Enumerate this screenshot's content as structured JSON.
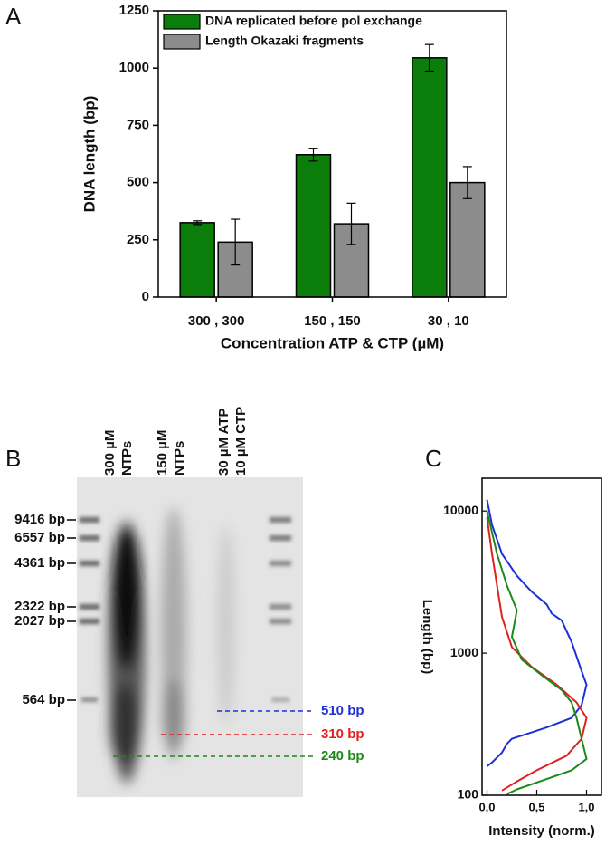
{
  "panel_labels": [
    "A",
    "B",
    "C"
  ],
  "chart_data": [
    {
      "type": "bar",
      "ylabel": "DNA length (bp)",
      "xlabel": "Concentration ATP & CTP (µM)",
      "categories": [
        "300 , 300",
        "150 , 150",
        "30 , 10"
      ],
      "series": [
        {
          "name": "DNA replicated before pol exchange",
          "color": "#0a7d0a",
          "values": [
            325,
            622,
            1045
          ],
          "errors": [
            8,
            28,
            58
          ]
        },
        {
          "name": "Length Okazaki fragments",
          "color": "#8c8c8c",
          "values": [
            240,
            320,
            500
          ],
          "errors": [
            100,
            90,
            70
          ]
        }
      ],
      "ylim": [
        0,
        1250
      ],
      "yticks": [
        0,
        250,
        500,
        750,
        1000,
        1250
      ],
      "legend": "upper left"
    },
    {
      "type": "line",
      "ylabel": "Length (bp)",
      "xlabel": "Intensity (norm.)",
      "log_y": true,
      "xlim": [
        -0.05,
        1.15
      ],
      "xticks": [
        {
          "value": 0,
          "label": "0,0"
        },
        {
          "value": 0.5,
          "label": "0,5"
        },
        {
          "value": 1,
          "label": "1,0"
        }
      ],
      "ylim": [
        100,
        17000
      ],
      "yticks": [
        100,
        1000,
        10000
      ],
      "series": [
        {
          "color": "#1f2fd8",
          "x": [
            0.0,
            0.05,
            0.15,
            0.3,
            0.45,
            0.6,
            0.65,
            0.75,
            0.85,
            0.95,
            1.0,
            0.95,
            0.85,
            0.6,
            0.4,
            0.25,
            0.2,
            0.15,
            0.05,
            0.0
          ],
          "values": [
            12000,
            8000,
            5000,
            3500,
            2700,
            2200,
            1900,
            1700,
            1200,
            750,
            600,
            430,
            350,
            300,
            270,
            250,
            230,
            200,
            170,
            160
          ]
        },
        {
          "color": "#e0201c",
          "x": [
            0.0,
            0.05,
            0.1,
            0.15,
            0.25,
            0.45,
            0.7,
            0.9,
            1.0,
            0.95,
            0.8,
            0.5,
            0.3,
            0.15
          ],
          "values": [
            9000,
            5000,
            3000,
            1800,
            1100,
            800,
            600,
            450,
            350,
            250,
            190,
            150,
            125,
            108
          ]
        },
        {
          "color": "#1a8a1a",
          "x": [
            0.0,
            0.1,
            0.2,
            0.3,
            0.25,
            0.35,
            0.55,
            0.75,
            0.85,
            0.9,
            0.95,
            1.0,
            0.85,
            0.6,
            0.3,
            0.2
          ],
          "values": [
            10000,
            5000,
            3000,
            2000,
            1300,
            900,
            700,
            550,
            450,
            350,
            250,
            180,
            150,
            130,
            110,
            102
          ]
        }
      ]
    }
  ],
  "gel": {
    "lanes": [
      "300 µM",
      "NTPs",
      "150 µM",
      "NTPs",
      "30 µM ATP",
      "10 µM CTP"
    ],
    "markers": [
      "9416 bp",
      "6557 bp",
      "4361 bp",
      "2322 bp",
      "2027 bp",
      "564 bp"
    ],
    "bands": [
      {
        "label": "510 bp",
        "color": "#1f2fd8"
      },
      {
        "label": "310 bp",
        "color": "#e0201c"
      },
      {
        "label": "240 bp",
        "color": "#1a8a1a"
      }
    ]
  }
}
